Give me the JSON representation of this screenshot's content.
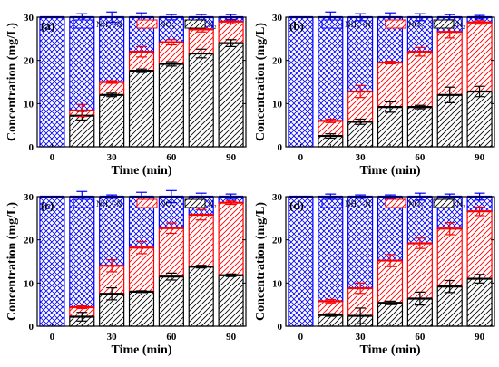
{
  "chart_data": [
    {
      "type": "bar",
      "stacked": true,
      "panel_label": "(a)",
      "xlabel": "Time (min)",
      "ylabel": "Concentration (mg/L)",
      "ylim": [
        0,
        30
      ],
      "yticks": [
        0,
        10,
        20,
        30
      ],
      "x": [
        0,
        15,
        30,
        45,
        60,
        75,
        90
      ],
      "xtick_labels": [
        "0",
        "30",
        "60",
        "90"
      ],
      "xtick_values": [
        0,
        30,
        60,
        90
      ],
      "legend": [
        "NH",
        "NO",
        "N"
      ],
      "series": [
        {
          "name": "N2",
          "color": "#000000",
          "values": [
            0,
            7.2,
            12.0,
            17.6,
            19.2,
            21.6,
            24.0
          ],
          "errors": [
            0,
            1.0,
            0.4,
            0.4,
            0.5,
            1.0,
            0.8
          ]
        },
        {
          "name": "NO3-",
          "color": "#ff0000",
          "values": [
            0,
            1.2,
            3.0,
            4.4,
            5.0,
            5.6,
            5.0
          ],
          "errors": [
            0,
            1.4,
            0.3,
            1.2,
            0.6,
            0.6,
            0.5
          ]
        },
        {
          "name": "NH4+-N",
          "color": "#0000ff",
          "values": [
            30,
            21.6,
            15.0,
            8.0,
            5.8,
            2.8,
            1.0
          ],
          "errors": [
            0,
            0.8,
            1.2,
            1.0,
            0.6,
            0.6,
            0.6
          ]
        }
      ]
    },
    {
      "type": "bar",
      "stacked": true,
      "panel_label": "(b)",
      "xlabel": "Time (min)",
      "ylabel": "Concentration (mg/L)",
      "ylim": [
        0,
        30
      ],
      "yticks": [
        0,
        10,
        20,
        30
      ],
      "x": [
        0,
        15,
        30,
        45,
        60,
        75,
        90
      ],
      "xtick_labels": [
        "0",
        "30",
        "60",
        "90"
      ],
      "xtick_values": [
        0,
        30,
        60,
        90
      ],
      "legend": [
        "NH",
        "NO",
        "N"
      ],
      "series": [
        {
          "name": "N2",
          "color": "#000000",
          "values": [
            0,
            2.5,
            5.8,
            9.2,
            9.2,
            12.0,
            12.8
          ],
          "errors": [
            0,
            0.5,
            0.6,
            1.2,
            0.4,
            1.8,
            1.2
          ]
        },
        {
          "name": "NO3-",
          "color": "#ff0000",
          "values": [
            0,
            3.5,
            7.0,
            10.3,
            12.8,
            14.6,
            16.0
          ],
          "errors": [
            0,
            0.4,
            1.4,
            0.3,
            1.0,
            1.4,
            0.4
          ]
        },
        {
          "name": "NH4+-N",
          "color": "#0000ff",
          "values": [
            30,
            24.0,
            17.2,
            10.5,
            8.0,
            3.4,
            1.2
          ],
          "errors": [
            0,
            1.2,
            0.8,
            1.0,
            0.8,
            0.6,
            0.4
          ]
        }
      ]
    },
    {
      "type": "bar",
      "stacked": true,
      "panel_label": "(c)",
      "xlabel": "Time (min)",
      "ylabel": "Concentration (mg/L)",
      "ylim": [
        0,
        30
      ],
      "yticks": [
        0,
        10,
        20,
        30
      ],
      "x": [
        0,
        15,
        30,
        45,
        60,
        75,
        90
      ],
      "xtick_labels": [
        "0",
        "30",
        "60",
        "90"
      ],
      "xtick_values": [
        0,
        30,
        60,
        90
      ],
      "legend": [
        "NH",
        "NO",
        "N"
      ],
      "series": [
        {
          "name": "N2",
          "color": "#000000",
          "values": [
            0,
            2.2,
            7.5,
            8.0,
            11.5,
            13.8,
            11.8
          ],
          "errors": [
            0,
            1.0,
            1.4,
            0.2,
            0.8,
            0.3,
            0.3
          ]
        },
        {
          "name": "NO3-",
          "color": "#ff0000",
          "values": [
            0,
            2.2,
            6.5,
            10.2,
            11.2,
            12.0,
            16.8
          ],
          "errors": [
            0,
            0.3,
            1.4,
            1.4,
            1.2,
            1.2,
            0.4
          ]
        },
        {
          "name": "NH4+-N",
          "color": "#0000ff",
          "values": [
            30,
            25.6,
            16.0,
            11.8,
            7.3,
            4.2,
            1.4
          ],
          "errors": [
            0,
            1.2,
            0.4,
            1.0,
            1.4,
            0.8,
            0.6
          ]
        }
      ]
    },
    {
      "type": "bar",
      "stacked": true,
      "panel_label": "(d)",
      "xlabel": "Time (min)",
      "ylabel": "Concentration (mg/L)",
      "ylim": [
        0,
        30
      ],
      "yticks": [
        0,
        10,
        20,
        30
      ],
      "x": [
        0,
        15,
        30,
        45,
        60,
        75,
        90
      ],
      "xtick_labels": [
        "0",
        "30",
        "60",
        "90"
      ],
      "xtick_values": [
        0,
        30,
        60,
        90
      ],
      "legend": [
        "NH",
        "NO",
        "N"
      ],
      "series": [
        {
          "name": "N2",
          "color": "#000000",
          "values": [
            0,
            2.6,
            2.4,
            5.4,
            6.4,
            9.2,
            11.0
          ],
          "errors": [
            0,
            0.3,
            1.8,
            0.4,
            1.5,
            1.4,
            1.0
          ]
        },
        {
          "name": "NO3-",
          "color": "#ff0000",
          "values": [
            0,
            3.2,
            6.4,
            9.8,
            12.8,
            13.4,
            15.6
          ],
          "errors": [
            0,
            0.4,
            1.2,
            1.4,
            1.2,
            1.4,
            1.0
          ]
        },
        {
          "name": "NH4+-N",
          "color": "#0000ff",
          "values": [
            30,
            24.2,
            21.2,
            14.8,
            10.8,
            7.4,
            3.4
          ],
          "errors": [
            0,
            0.6,
            0.4,
            0.4,
            0.8,
            0.6,
            0.8
          ]
        }
      ]
    }
  ]
}
